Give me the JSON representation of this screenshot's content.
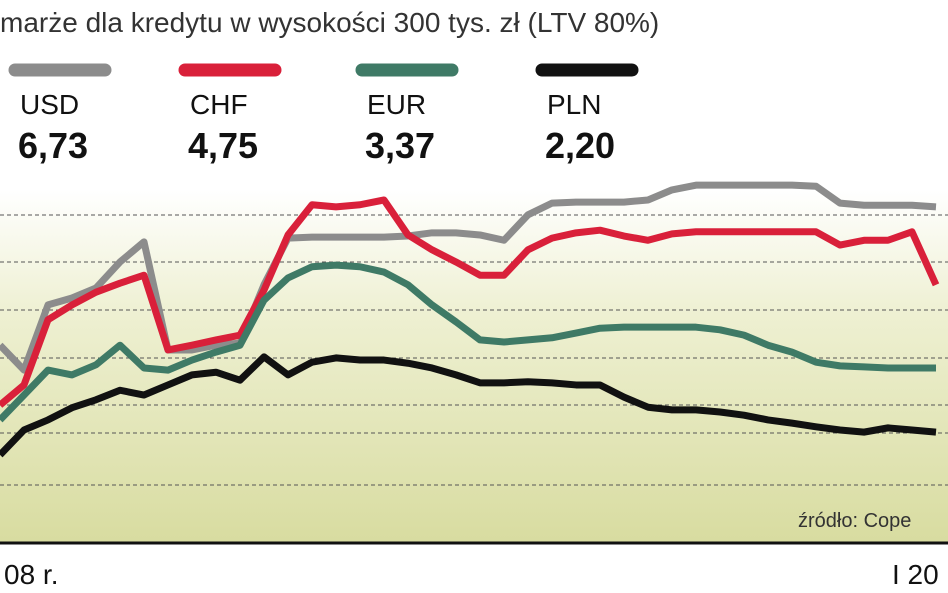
{
  "chart_data": {
    "type": "line",
    "title": "marże dla kredytu w wysokości 300 tys. zł (LTV 80%)",
    "source": "źródło: Cope",
    "categories": [
      null,
      "08 r.",
      null,
      null,
      null,
      null,
      null,
      null,
      null,
      null,
      null,
      null,
      null,
      null,
      null,
      null,
      null,
      null,
      null,
      null,
      null,
      null,
      null,
      null,
      null,
      null,
      null,
      null,
      null,
      null,
      null,
      null,
      null,
      null,
      null,
      null,
      null,
      null,
      "I 20",
      null
    ],
    "ylim": [
      0,
      8
    ],
    "series": [
      {
        "name": "USD",
        "legend_value": "6,73",
        "color": "#8c8c8c",
        "values": [
          3.8,
          3.33,
          4.56,
          4.69,
          4.88,
          5.37,
          5.75,
          3.71,
          3.71,
          3.8,
          3.84,
          4.94,
          5.82,
          5.84,
          5.84,
          5.84,
          5.84,
          5.86,
          5.92,
          5.92,
          5.88,
          5.78,
          6.26,
          6.48,
          6.5,
          6.5,
          6.5,
          6.54,
          6.73,
          6.82,
          6.82,
          6.82,
          6.82,
          6.82,
          6.8,
          6.48,
          6.44,
          6.44,
          6.44,
          6.41
        ]
      },
      {
        "name": "CHF",
        "legend_value": "4,75",
        "color": "#d9203a",
        "values": [
          2.67,
          3.05,
          4.28,
          4.56,
          4.8,
          4.97,
          5.12,
          3.71,
          3.8,
          3.9,
          3.99,
          4.84,
          5.88,
          6.45,
          6.41,
          6.45,
          6.54,
          5.88,
          5.6,
          5.37,
          5.12,
          5.12,
          5.6,
          5.82,
          5.92,
          5.97,
          5.86,
          5.78,
          5.9,
          5.94,
          5.94,
          5.94,
          5.94,
          5.94,
          5.94,
          5.69,
          5.78,
          5.78,
          5.94,
          4.94
        ]
      },
      {
        "name": "EUR",
        "legend_value": "3,37",
        "color": "#3f7a66",
        "values": [
          2.39,
          2.86,
          3.33,
          3.24,
          3.43,
          3.8,
          3.37,
          3.33,
          3.52,
          3.67,
          3.8,
          4.65,
          5.07,
          5.28,
          5.31,
          5.28,
          5.18,
          4.94,
          4.56,
          4.24,
          3.9,
          3.86,
          3.9,
          3.94,
          4.03,
          4.12,
          4.14,
          4.14,
          4.14,
          4.14,
          4.09,
          3.99,
          3.8,
          3.67,
          3.48,
          3.41,
          3.39,
          3.37,
          3.37,
          3.37
        ]
      },
      {
        "name": "PLN",
        "legend_value": "2,20",
        "color": "#111111",
        "values": [
          1.73,
          2.2,
          2.39,
          2.62,
          2.77,
          2.95,
          2.86,
          3.05,
          3.24,
          3.29,
          3.14,
          3.58,
          3.24,
          3.48,
          3.56,
          3.52,
          3.52,
          3.46,
          3.37,
          3.24,
          3.09,
          3.09,
          3.11,
          3.09,
          3.05,
          3.05,
          2.82,
          2.63,
          2.58,
          2.58,
          2.54,
          2.48,
          2.39,
          2.33,
          2.26,
          2.2,
          2.16,
          2.24,
          2.2,
          2.16
        ]
      }
    ]
  }
}
